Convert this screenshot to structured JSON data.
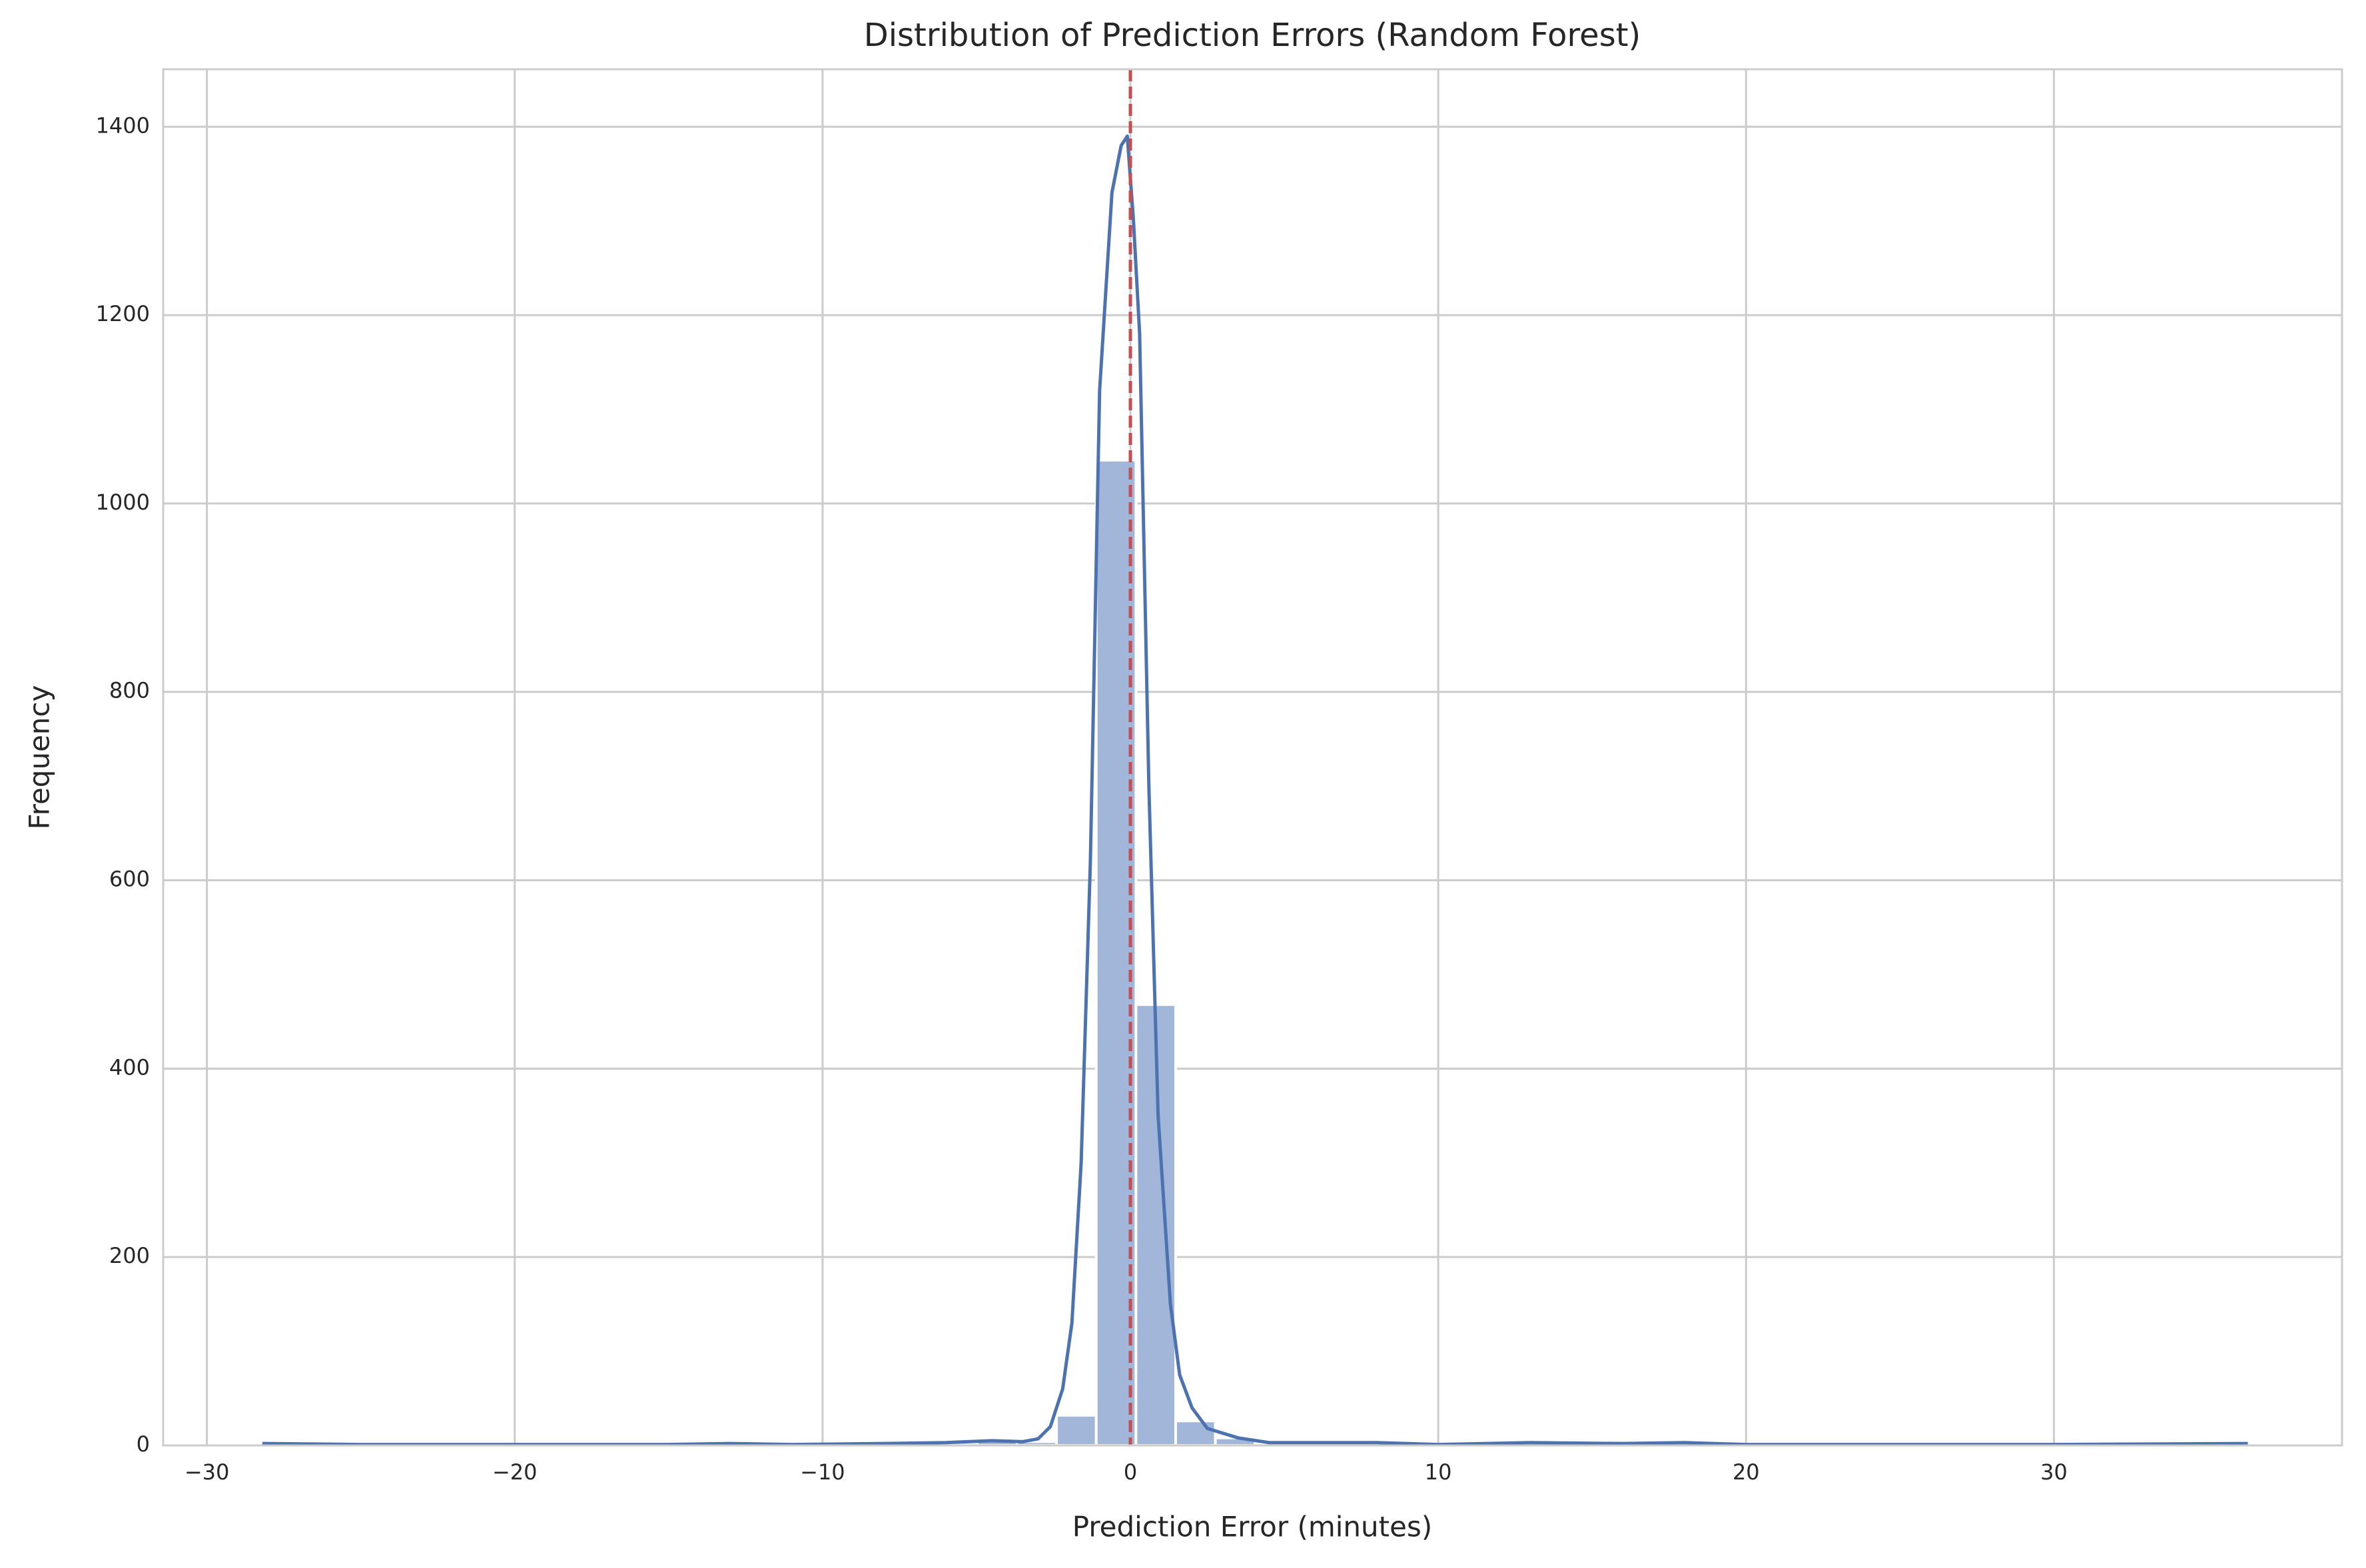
{
  "chart_data": {
    "type": "histogram",
    "title": "Distribution of Prediction Errors (Random Forest)",
    "x_label": "Prediction Error (minutes)",
    "y_label": "Frequency",
    "bins": [
      -28.2,
      -26.91,
      -25.62,
      -24.33,
      -23.04,
      -21.75,
      -20.46,
      -19.17,
      -17.88,
      -16.59,
      -15.3,
      -14.01,
      -12.72,
      -11.43,
      -10.14,
      -8.85,
      -7.56,
      -6.27,
      -4.98,
      -3.69,
      -2.4,
      -1.11,
      0.18,
      1.47,
      2.76,
      4.05,
      5.34,
      6.63,
      7.92,
      9.21,
      10.5,
      11.79,
      13.08,
      14.37,
      15.66,
      16.95,
      18.24,
      19.53,
      20.82,
      22.11,
      23.4,
      24.69,
      25.98,
      27.27,
      28.56,
      29.85,
      31.14,
      32.43,
      33.72,
      35.01,
      36.3
    ],
    "counts": [
      2,
      0,
      0,
      0,
      0,
      0,
      0,
      0,
      0,
      0,
      0,
      1,
      2,
      1,
      0,
      1,
      2,
      3,
      5,
      4,
      32,
      1046,
      468,
      26,
      8,
      2,
      3,
      2,
      1,
      0,
      0,
      2,
      3,
      2,
      1,
      2,
      3,
      1,
      0,
      0,
      0,
      0,
      0,
      0,
      0,
      0,
      0,
      0,
      0,
      0,
      1
    ],
    "color": "#a2b6da",
    "kde": {
      "x": [
        -28.2,
        -25,
        -20,
        -15,
        -13,
        -11,
        -8,
        -6,
        -4.5,
        -3.5,
        -3,
        -2.6,
        -2.2,
        -1.9,
        -1.6,
        -1.3,
        -1.0,
        -0.6,
        -0.3,
        -0.1,
        0.1,
        0.3,
        0.6,
        0.9,
        1.3,
        1.6,
        2,
        2.5,
        3.5,
        4.5,
        6,
        8,
        10,
        13,
        16,
        18,
        20,
        25,
        30,
        36.3
      ],
      "y": [
        2,
        1,
        1,
        1,
        2,
        1,
        2,
        3,
        5,
        4,
        7,
        20,
        60,
        130,
        300,
        620,
        1120,
        1330,
        1380,
        1390,
        1300,
        1180,
        700,
        350,
        150,
        75,
        40,
        18,
        8,
        3,
        3,
        3,
        1,
        3,
        2,
        3,
        1,
        1,
        1,
        2
      ],
      "color": "#4c72b0"
    },
    "vline": 0,
    "vline_color": "#c44e52",
    "xlim": [
      -31.42,
      39.36
    ],
    "ylim": [
      0,
      1461
    ],
    "xticks": [
      {
        "value": -30,
        "label": "−30"
      },
      {
        "value": -20,
        "label": "−20"
      },
      {
        "value": -10,
        "label": "−10"
      },
      0,
      10,
      20,
      30
    ],
    "yticks": [
      0,
      200,
      400,
      600,
      800,
      1000,
      1200,
      1400
    ],
    "grid": true
  }
}
